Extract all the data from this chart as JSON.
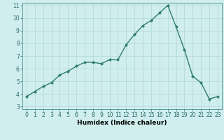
{
  "x": [
    0,
    1,
    2,
    3,
    4,
    5,
    6,
    7,
    8,
    9,
    10,
    11,
    12,
    13,
    14,
    15,
    16,
    17,
    18,
    19,
    20,
    21,
    22,
    23
  ],
  "y": [
    3.8,
    4.2,
    4.6,
    4.9,
    5.5,
    5.8,
    6.2,
    6.5,
    6.5,
    6.4,
    6.7,
    6.7,
    7.9,
    8.7,
    9.4,
    9.8,
    10.4,
    11.0,
    9.3,
    7.5,
    5.4,
    4.9,
    3.6,
    3.8
  ],
  "line_color": "#2e7d6e",
  "marker": "D",
  "marker_size": 2,
  "bg_color": "#d0eeee",
  "grid_color": "#b8dada",
  "xlabel": "Humidex (Indice chaleur)",
  "ylim": [
    3,
    11
  ],
  "xlim": [
    -0.5,
    23.5
  ],
  "yticks": [
    3,
    4,
    5,
    6,
    7,
    8,
    9,
    10,
    11
  ],
  "xticks": [
    0,
    1,
    2,
    3,
    4,
    5,
    6,
    7,
    8,
    9,
    10,
    11,
    12,
    13,
    14,
    15,
    16,
    17,
    18,
    19,
    20,
    21,
    22,
    23
  ],
  "tick_fontsize": 5.5,
  "xlabel_fontsize": 6.5,
  "line_width": 1.0
}
